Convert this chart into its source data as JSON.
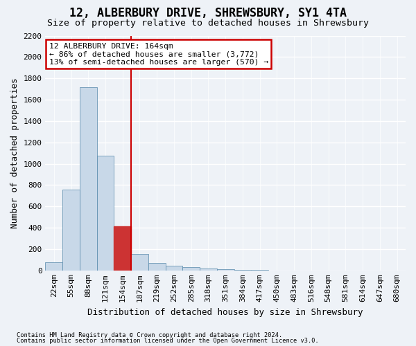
{
  "title": "12, ALBERBURY DRIVE, SHREWSBURY, SY1 4TA",
  "subtitle": "Size of property relative to detached houses in Shrewsbury",
  "xlabel": "Distribution of detached houses by size in Shrewsbury",
  "ylabel": "Number of detached properties",
  "footnote1": "Contains HM Land Registry data © Crown copyright and database right 2024.",
  "footnote2": "Contains public sector information licensed under the Open Government Licence v3.0.",
  "bin_labels": [
    "22sqm",
    "55sqm",
    "88sqm",
    "121sqm",
    "154sqm",
    "187sqm",
    "219sqm",
    "252sqm",
    "285sqm",
    "318sqm",
    "351sqm",
    "384sqm",
    "417sqm",
    "450sqm",
    "483sqm",
    "516sqm",
    "548sqm",
    "581sqm",
    "614sqm",
    "647sqm",
    "680sqm"
  ],
  "bar_values": [
    75,
    755,
    1720,
    1075,
    415,
    155,
    70,
    45,
    30,
    20,
    10,
    5,
    3,
    0,
    0,
    0,
    0,
    0,
    0,
    0,
    0
  ],
  "bar_color": "#c8d8e8",
  "bar_edge_color": "#5588aa",
  "highlight_bar_index": 4,
  "highlight_bar_color": "#cc3333",
  "highlight_bar_edge_color": "#cc3333",
  "vline_color": "#cc0000",
  "ylim": [
    0,
    2200
  ],
  "yticks": [
    0,
    200,
    400,
    600,
    800,
    1000,
    1200,
    1400,
    1600,
    1800,
    2000,
    2200
  ],
  "annotation_text": "12 ALBERBURY DRIVE: 164sqm\n← 86% of detached houses are smaller (3,772)\n13% of semi-detached houses are larger (570) →",
  "annotation_box_color": "#ffffff",
  "annotation_box_edge": "#cc0000",
  "background_color": "#eef2f7",
  "plot_bg_color": "#eef2f7",
  "grid_color": "#ffffff",
  "title_fontsize": 12,
  "subtitle_fontsize": 9.5,
  "label_fontsize": 9,
  "tick_fontsize": 8
}
